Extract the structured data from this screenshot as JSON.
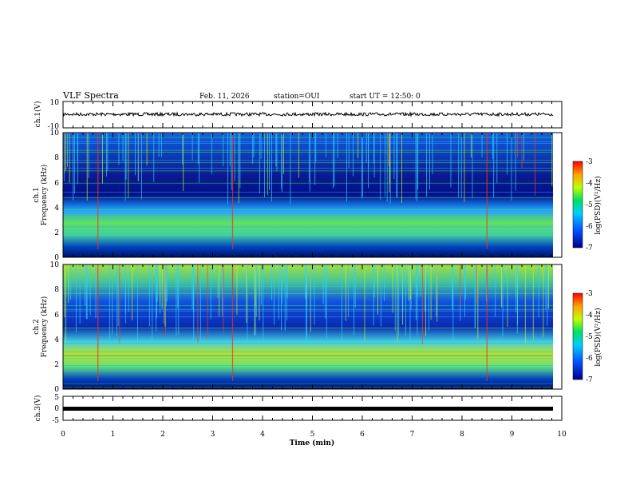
{
  "header": {
    "title": "VLF Spectra",
    "date": "Feb. 11, 2026",
    "station": "station=OUI",
    "start": "start UT =   12:50: 0"
  },
  "chart_data": [
    {
      "type": "line",
      "name": "ch1-waveform",
      "ylabel": "ch.1(V)",
      "ylim": [
        -10,
        10
      ],
      "yticks": [
        "10",
        "-10"
      ],
      "xlim": [
        0,
        10
      ]
    },
    {
      "type": "heatmap",
      "name": "ch1-spectrogram",
      "ylabel": "ch.1\nFrequency (kHz)",
      "ylim": [
        0,
        10
      ],
      "yticks": [
        "0",
        "2",
        "4",
        "6",
        "8",
        "10"
      ],
      "xlim": [
        0,
        10
      ],
      "colorbar": {
        "label": "log(PSD)(V²/Hz)",
        "range": [
          -7,
          -3
        ],
        "ticks": [
          "-3",
          "-4",
          "-5",
          "-6",
          "-7"
        ]
      }
    },
    {
      "type": "heatmap",
      "name": "ch2-spectrogram",
      "ylabel": "ch.2\nFrequency (kHz)",
      "ylim": [
        0,
        10
      ],
      "yticks": [
        "0",
        "2",
        "4",
        "6",
        "8",
        "10"
      ],
      "xlim": [
        0,
        10
      ],
      "colorbar": {
        "label": "log(PSD)(V²/Hz)",
        "range": [
          -7,
          -3
        ],
        "ticks": [
          "-3",
          "-4",
          "-5",
          "-6",
          "-7"
        ]
      }
    },
    {
      "type": "line",
      "name": "ch3-waveform",
      "ylabel": "ch.3(V)",
      "ylim": [
        -5,
        5
      ],
      "yticks": [
        "5",
        "0",
        "-5"
      ],
      "xlim": [
        0,
        10
      ]
    }
  ],
  "xaxis": {
    "label": "Time (min)",
    "ticks": [
      "0",
      "1",
      "2",
      "3",
      "4",
      "5",
      "6",
      "7",
      "8",
      "9",
      "10"
    ],
    "range": [
      0,
      10
    ]
  },
  "colors": {
    "low": "#00008b",
    "mid": "#00c000",
    "high": "#ff0000"
  }
}
